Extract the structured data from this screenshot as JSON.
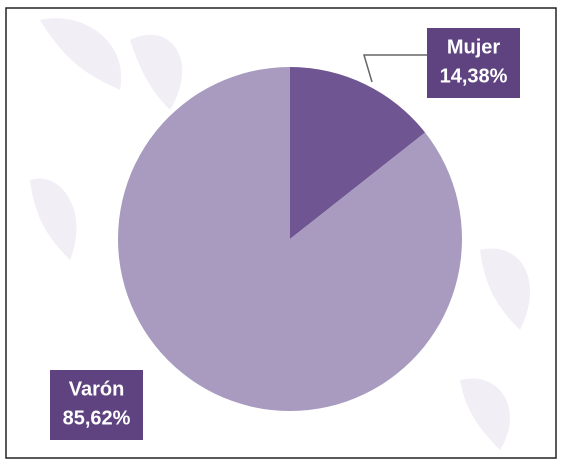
{
  "chart_data": {
    "type": "pie",
    "categories": [
      "Mujer",
      "Varón"
    ],
    "values": [
      14.38,
      85.62
    ],
    "value_labels": [
      "14,38%",
      "85,62%"
    ],
    "colors": [
      "#6f5591",
      "#a89bbf"
    ],
    "label_color": "#5e4380"
  }
}
